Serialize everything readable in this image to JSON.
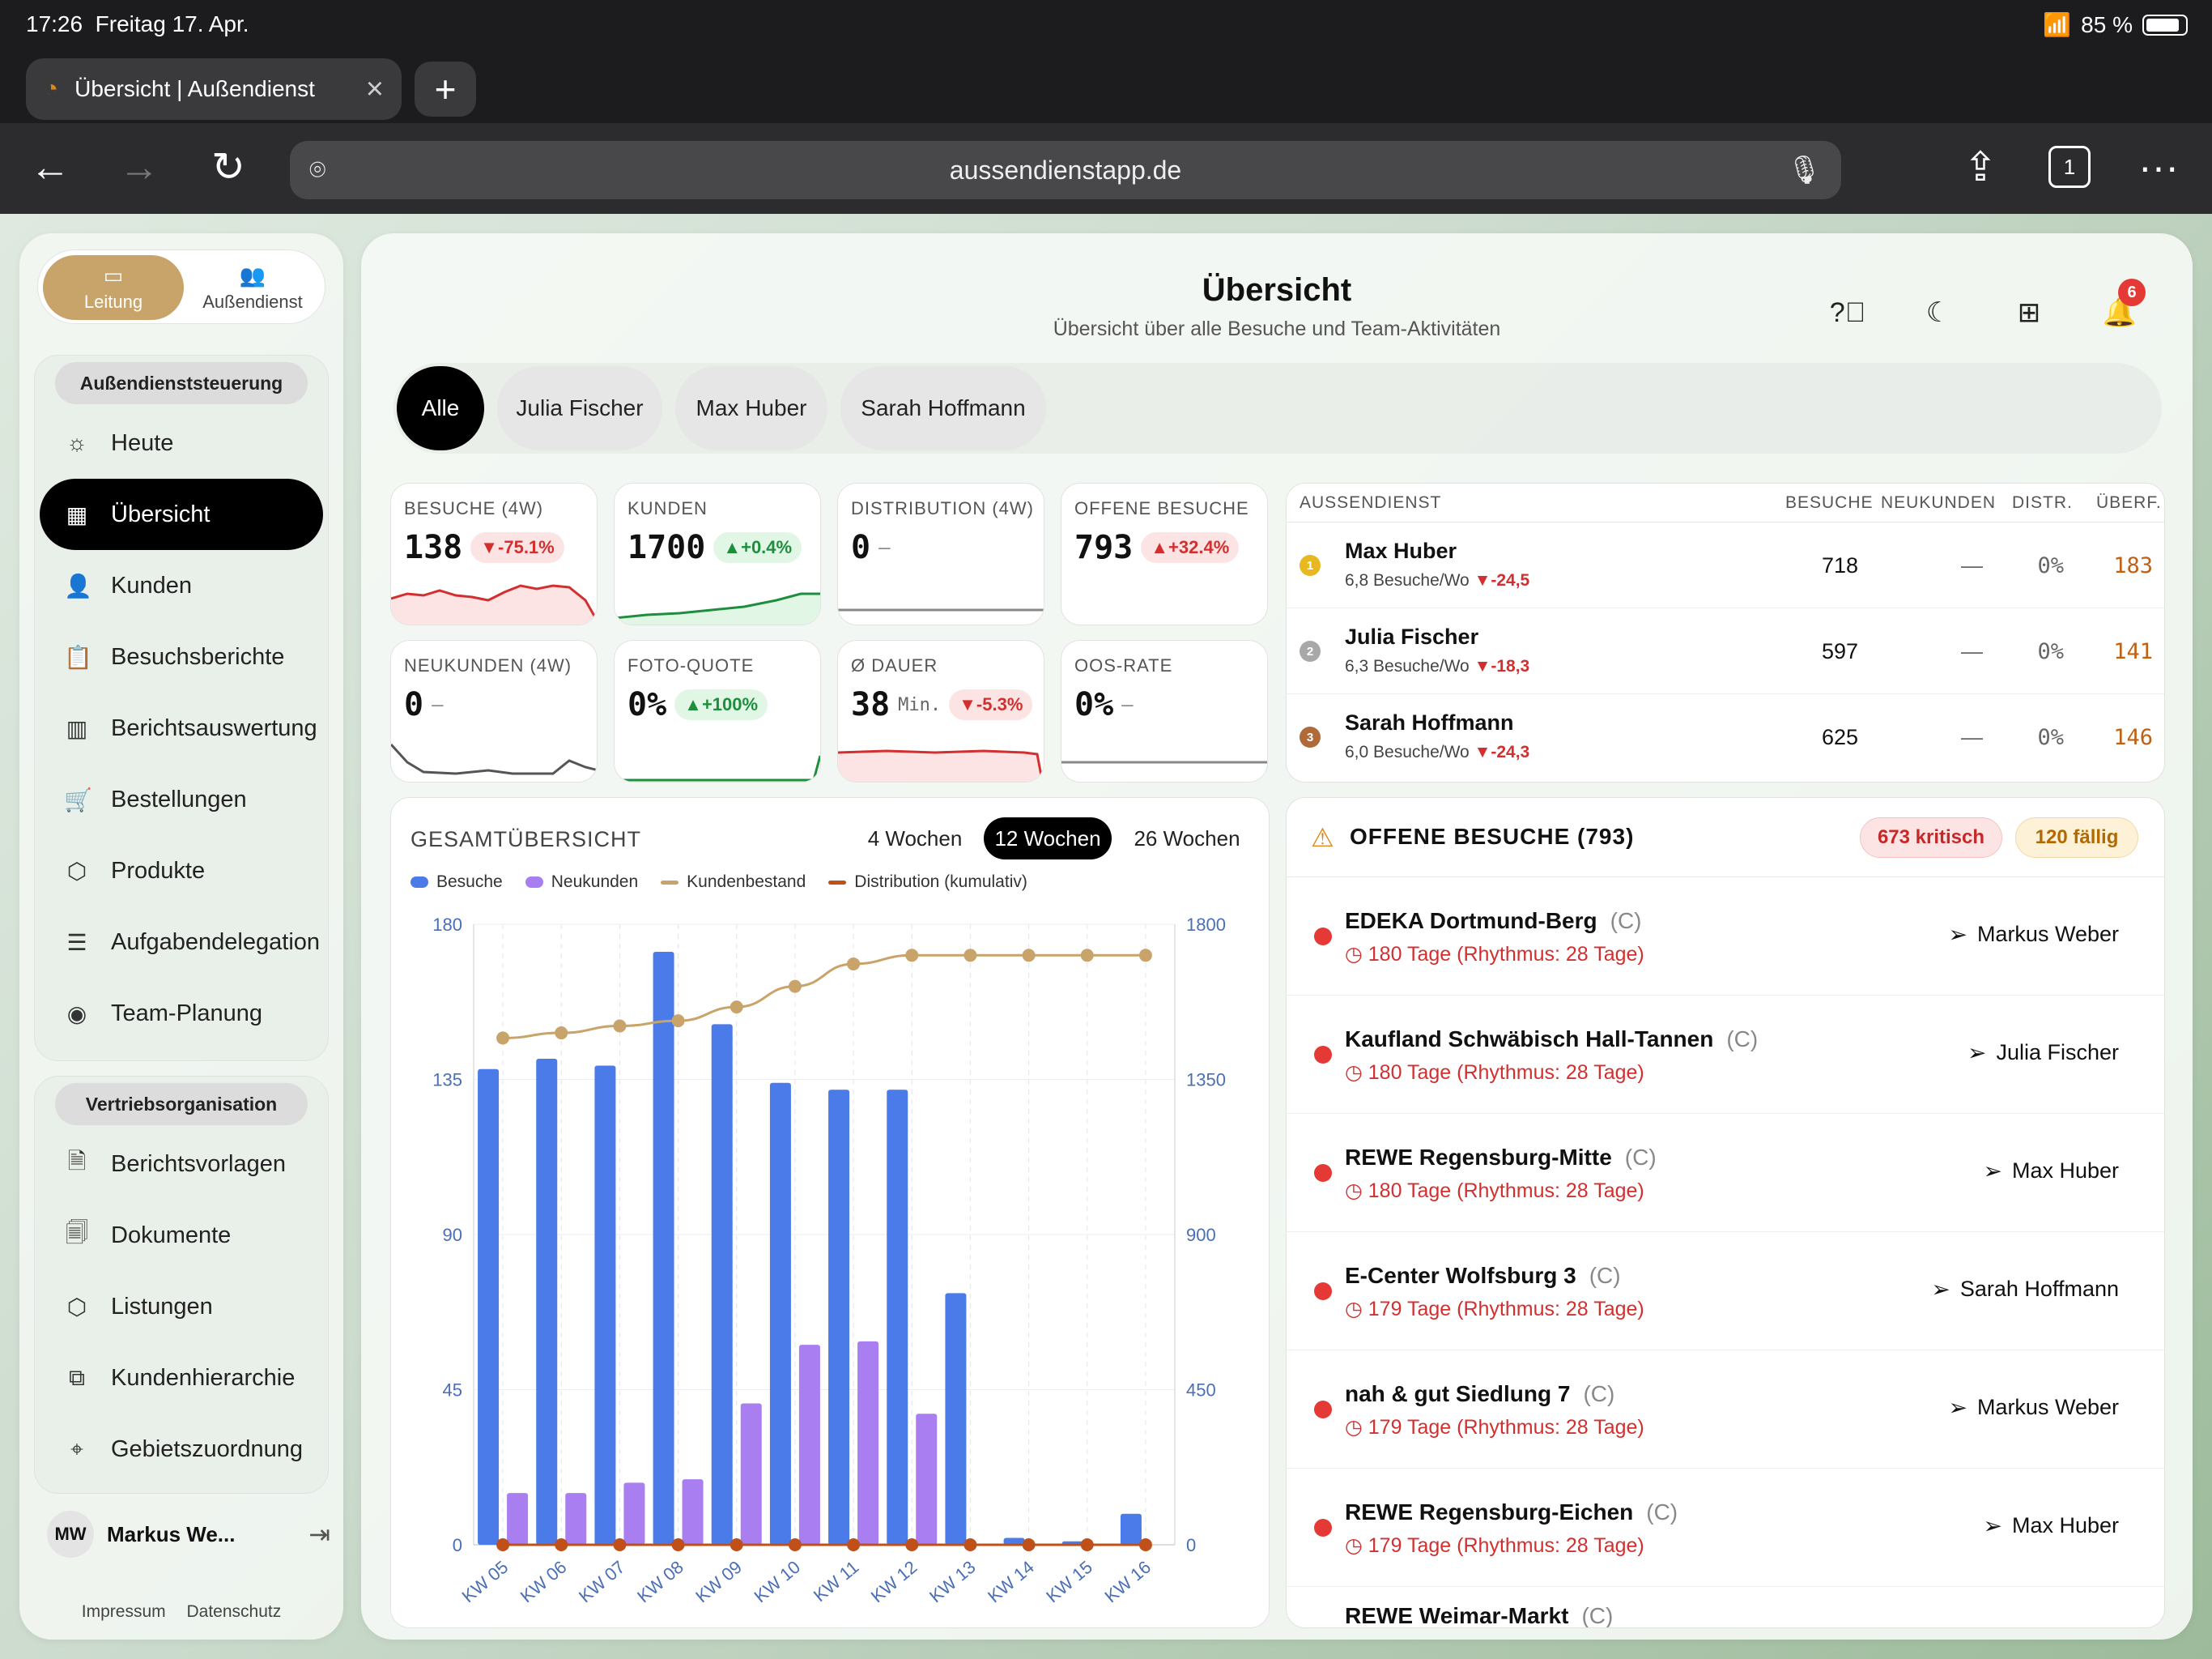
{
  "status": {
    "time": "17:26",
    "date": "Freitag 17. Apr.",
    "battery": "85 %"
  },
  "browser": {
    "tab_title": "Übersicht | Außendienst",
    "url": "aussendienstapp.de",
    "tab_count": "1"
  },
  "roles": [
    {
      "label": "Leitung"
    },
    {
      "label": "Außendienst"
    }
  ],
  "nav_group1": {
    "title": "Außendienststeuerung",
    "items": [
      {
        "label": "Heute"
      },
      {
        "label": "Übersicht"
      },
      {
        "label": "Kunden"
      },
      {
        "label": "Besuchsberichte"
      },
      {
        "label": "Berichtsauswertung"
      },
      {
        "label": "Bestellungen"
      },
      {
        "label": "Produkte"
      },
      {
        "label": "Aufgabendelegation"
      },
      {
        "label": "Team-Planung"
      }
    ]
  },
  "nav_group2": {
    "title": "Vertriebsorganisation",
    "items": [
      {
        "label": "Berichtsvorlagen"
      },
      {
        "label": "Dokumente"
      },
      {
        "label": "Listungen"
      },
      {
        "label": "Kundenhierarchie"
      },
      {
        "label": "Gebietszuordnung"
      }
    ]
  },
  "user": {
    "initials": "MW",
    "name": "Markus We..."
  },
  "footer": {
    "imprint": "Impressum",
    "privacy": "Datenschutz"
  },
  "header": {
    "title": "Übersicht",
    "subtitle": "Übersicht über alle Besuche und Team-Aktivitäten",
    "notifications": "6"
  },
  "filters": [
    {
      "label": "Alle"
    },
    {
      "label": "Julia Fischer"
    },
    {
      "label": "Max Huber"
    },
    {
      "label": "Sarah Hoffmann"
    }
  ],
  "kpis": [
    {
      "label": "BESUCHE (4W)",
      "value": "138",
      "delta": "▼-75.1%",
      "trend": "neg"
    },
    {
      "label": "KUNDEN",
      "value": "1700",
      "delta": "▲+0.4%",
      "trend": "pos"
    },
    {
      "label": "DISTRIBUTION (4W)",
      "value": "0",
      "dash": "—"
    },
    {
      "label": "OFFENE BESUCHE",
      "value": "793",
      "delta": "▲+32.4%",
      "trend": "neg"
    },
    {
      "label": "NEUKUNDEN (4W)",
      "value": "0",
      "dash": "—"
    },
    {
      "label": "FOTO-QUOTE",
      "value": "0%",
      "delta": "▲+100%",
      "trend": "pos"
    },
    {
      "label": "Ø DAUER",
      "value": "38",
      "unit": "Min.",
      "delta": "▼-5.3%",
      "trend": "neg"
    },
    {
      "label": "OOS-RATE",
      "value": "0%",
      "dash": "—"
    }
  ],
  "ranking": {
    "headers": {
      "rep": "AUSSENDIENST",
      "visits": "BESUCHE",
      "new": "NEUKUNDEN",
      "distr": "DISTR.",
      "overdue": "ÜBERF."
    },
    "rows": [
      {
        "rank": "1",
        "name": "Max Huber",
        "rate": "6,8 Besuche/Wo",
        "delta": "▼-24,5",
        "visits": "718",
        "new": "—",
        "distr": "0%",
        "overdue": "183"
      },
      {
        "rank": "2",
        "name": "Julia Fischer",
        "rate": "6,3 Besuche/Wo",
        "delta": "▼-18,3",
        "visits": "597",
        "new": "—",
        "distr": "0%",
        "overdue": "141"
      },
      {
        "rank": "3",
        "name": "Sarah Hoffmann",
        "rate": "6,0 Besuche/Wo",
        "delta": "▼-24,3",
        "visits": "625",
        "new": "—",
        "distr": "0%",
        "overdue": "146"
      }
    ]
  },
  "overview": {
    "title": "GESAMTÜBERSICHT",
    "ranges": [
      {
        "label": "4 Wochen"
      },
      {
        "label": "12 Wochen"
      },
      {
        "label": "26 Wochen"
      }
    ],
    "legend": {
      "visits": "Besuche",
      "new": "Neukunden",
      "stock": "Kundenbestand",
      "distribution": "Distribution (kumulativ)"
    }
  },
  "chart_data": {
    "type": "bar",
    "categories": [
      "KW 05",
      "KW 06",
      "KW 07",
      "KW 08",
      "KW 09",
      "KW 10",
      "KW 11",
      "KW 12",
      "KW 13",
      "KW 14",
      "KW 15",
      "KW 16"
    ],
    "y_left": {
      "min": 0,
      "max": 180,
      "ticks": [
        "0",
        "45",
        "90",
        "135",
        "180"
      ]
    },
    "y_right": {
      "min": 0,
      "max": 1800,
      "ticks": [
        "0",
        "450",
        "900",
        "1350",
        "1800"
      ]
    },
    "series": [
      {
        "name": "Besuche",
        "type": "bar",
        "axis": "left",
        "color": "#4a7be8",
        "values": [
          138,
          141,
          139,
          172,
          151,
          134,
          132,
          132,
          73,
          2,
          1,
          9
        ]
      },
      {
        "name": "Neukunden",
        "type": "bar",
        "axis": "left",
        "color": "#a87ef0",
        "values": [
          15,
          15,
          18,
          19,
          41,
          58,
          59,
          38,
          0,
          0,
          0,
          0
        ]
      },
      {
        "name": "Kundenbestand",
        "type": "line",
        "axis": "right",
        "color": "#c9a46a",
        "values": [
          1470,
          1485,
          1505,
          1520,
          1560,
          1620,
          1685,
          1710,
          1710,
          1710,
          1710,
          1710
        ]
      },
      {
        "name": "Distribution (kumulativ)",
        "type": "line",
        "axis": "left",
        "color": "#c0501a",
        "values": [
          0,
          0,
          0,
          0,
          0,
          0,
          0,
          0,
          0,
          0,
          0,
          0
        ]
      }
    ]
  },
  "open_visits": {
    "title": "OFFENE BESUCHE (793)",
    "critical": "673 kritisch",
    "due": "120 fällig",
    "items": [
      {
        "name": "EDEKA Dortmund-Berg",
        "cls": "(C)",
        "info": "180 Tage (Rhythmus: 28 Tage)",
        "assignee": "Markus Weber"
      },
      {
        "name": "Kaufland Schwäbisch Hall-Tannen",
        "cls": "(C)",
        "info": "180 Tage (Rhythmus: 28 Tage)",
        "assignee": "Julia Fischer"
      },
      {
        "name": "REWE Regensburg-Mitte",
        "cls": "(C)",
        "info": "180 Tage (Rhythmus: 28 Tage)",
        "assignee": "Max Huber"
      },
      {
        "name": "E-Center Wolfsburg 3",
        "cls": "(C)",
        "info": "179 Tage (Rhythmus: 28 Tage)",
        "assignee": "Sarah Hoffmann"
      },
      {
        "name": "nah & gut Siedlung 7",
        "cls": "(C)",
        "info": "179 Tage (Rhythmus: 28 Tage)",
        "assignee": "Markus Weber"
      },
      {
        "name": "REWE Regensburg-Eichen",
        "cls": "(C)",
        "info": "179 Tage (Rhythmus: 28 Tage)",
        "assignee": "Max Huber"
      },
      {
        "name": "REWE Weimar-Markt",
        "cls": "(C)",
        "info": "",
        "assignee": ""
      }
    ]
  }
}
